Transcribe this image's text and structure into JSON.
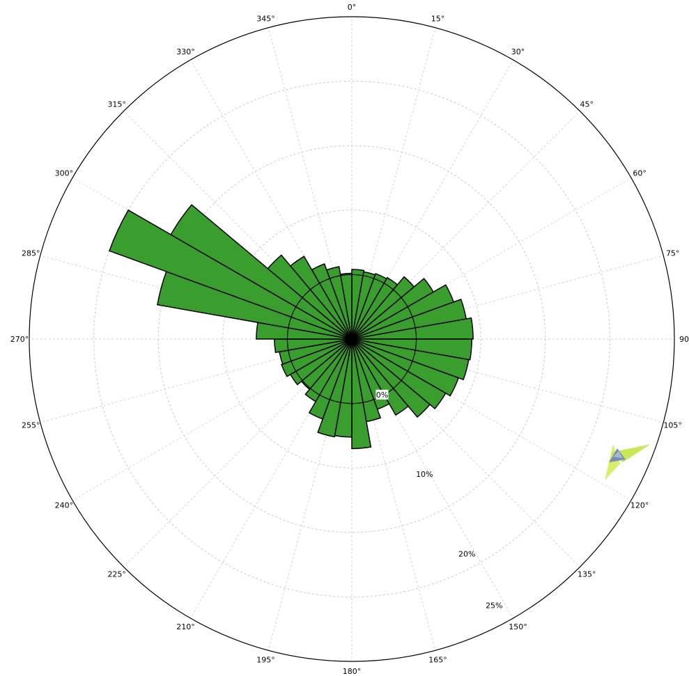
{
  "chart_data": {
    "type": "rose",
    "direction_labels": [
      "0°",
      "15°",
      "30°",
      "45°",
      "60°",
      "75°",
      "90",
      "105°",
      "120°",
      "135°",
      "150°",
      "165°",
      "180°",
      "195°",
      "210°",
      "225°",
      "240°",
      "255°",
      "270°",
      "285°",
      "300°",
      "315°",
      "330°",
      "345°"
    ],
    "ring_labels": [
      "0%",
      "10%",
      "20%",
      "25%"
    ],
    "rlim": [
      0,
      25
    ],
    "sector_width_deg": 10,
    "sector_centers_deg": [
      5,
      15,
      25,
      35,
      45,
      55,
      65,
      75,
      85,
      95,
      105,
      115,
      125,
      135,
      145,
      155,
      165,
      175,
      185,
      195,
      205,
      215,
      225,
      235,
      245,
      255,
      265,
      275,
      285,
      295,
      305,
      315,
      325,
      335,
      345,
      355
    ],
    "values": [
      5.4,
      5.3,
      5.4,
      5.5,
      6.3,
      7.3,
      8.4,
      9.0,
      9.4,
      9.3,
      9.2,
      8.8,
      8.4,
      7.9,
      6.8,
      5.8,
      6.5,
      8.5,
      7.6,
      7.7,
      6.6,
      5.6,
      5.1,
      5.5,
      5.8,
      5.7,
      6.0,
      7.4,
      15.3,
      20.0,
      16.2,
      8.5,
      7.4,
      6.2,
      5.7,
      5.1
    ],
    "inner_ring_value": 5,
    "colors": {
      "fill": "#3a9e2e",
      "edge": "#000000",
      "grid": "#c8c8c8"
    }
  },
  "logo": {
    "name": "arrow-logo"
  }
}
